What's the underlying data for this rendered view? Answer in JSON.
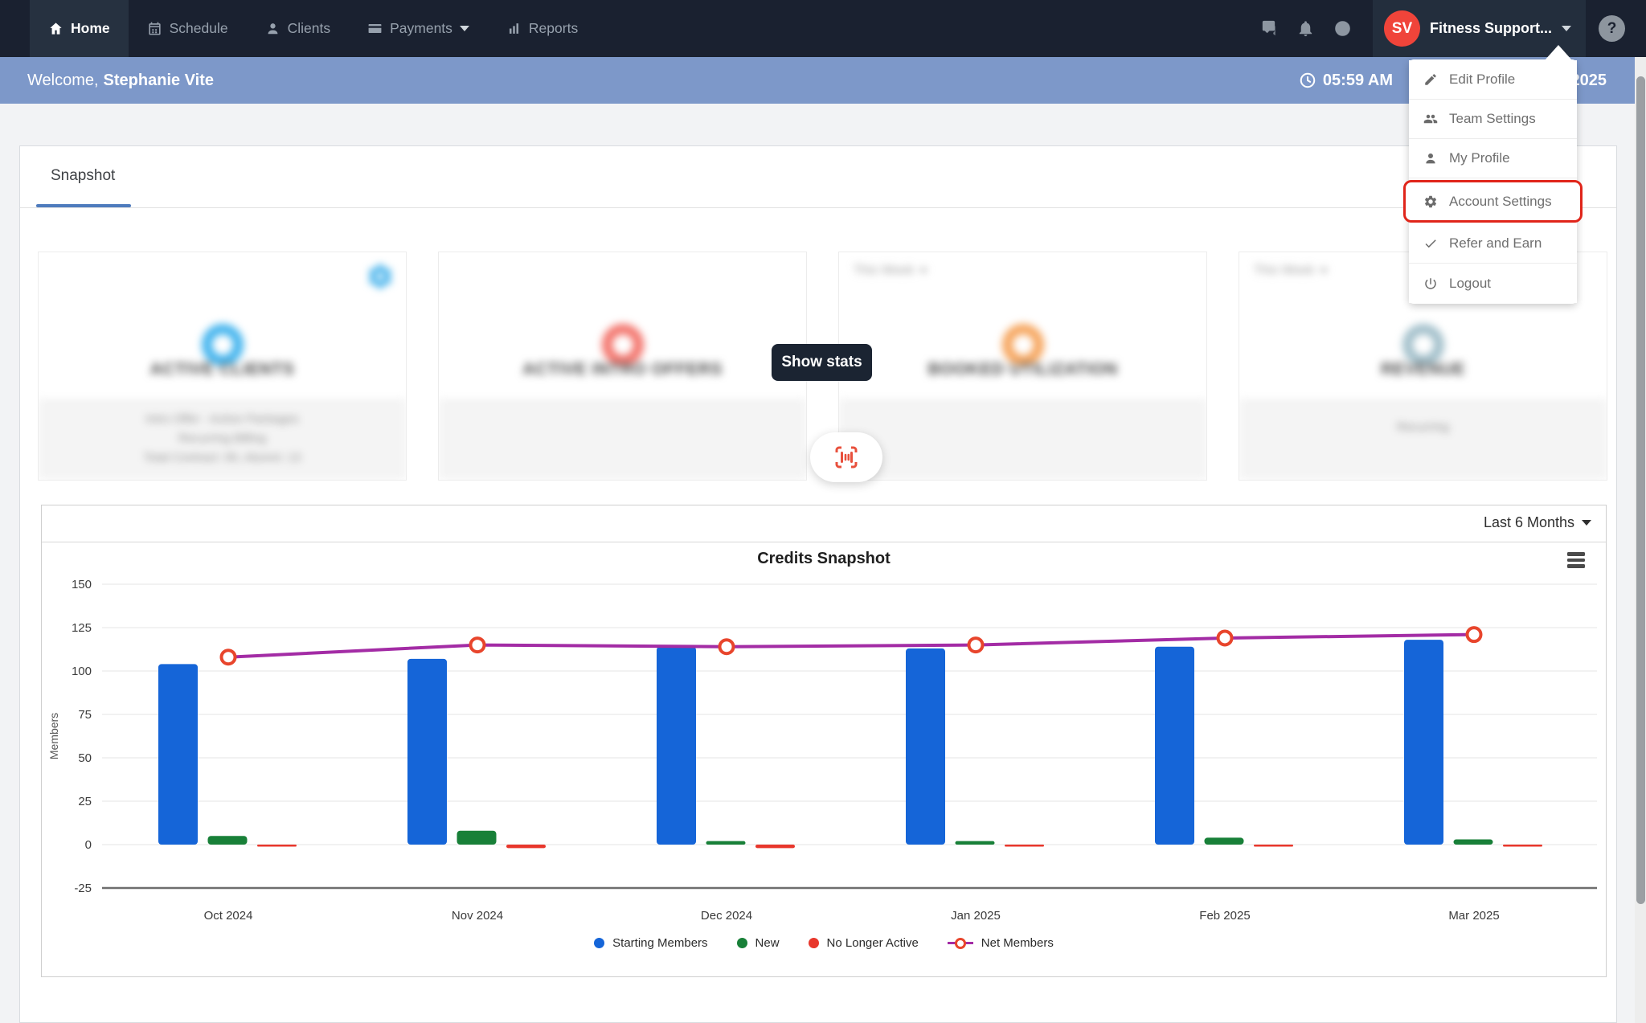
{
  "navbar": {
    "items": [
      {
        "label": "Home",
        "icon": "home-icon",
        "active": true
      },
      {
        "label": "Schedule",
        "icon": "calendar-icon",
        "active": false
      },
      {
        "label": "Clients",
        "icon": "clients-icon",
        "active": false
      },
      {
        "label": "Payments",
        "icon": "payments-icon",
        "active": false,
        "has_caret": true
      },
      {
        "label": "Reports",
        "icon": "reports-icon",
        "active": false
      }
    ],
    "user": {
      "initials": "SV",
      "name": "Fitness Support...",
      "avatar_color": "#f0443a"
    },
    "help_label": "?"
  },
  "welcome_bar": {
    "prefix": "Welcome,",
    "name": "Stephanie Vite",
    "time": "05:59 AM",
    "date_fragment": "2025",
    "bg": "#7d98c9"
  },
  "user_menu": {
    "highlight_color": "#e0251a",
    "items": [
      {
        "label": "Edit Profile",
        "icon": "pencil-icon",
        "highlighted": false
      },
      {
        "label": "Team Settings",
        "icon": "team-icon",
        "highlighted": false
      },
      {
        "label": "My Profile",
        "icon": "user-icon",
        "highlighted": false
      },
      {
        "label": "Account Settings",
        "icon": "gear-icon",
        "highlighted": true
      },
      {
        "label": "Refer and Earn",
        "icon": "check-icon",
        "highlighted": false
      },
      {
        "label": "Logout",
        "icon": "power-icon",
        "highlighted": false
      }
    ]
  },
  "tabs": {
    "active": "Snapshot"
  },
  "stat_cards": [
    {
      "title": "ACTIVE CLIENTS",
      "accent": "#45b5ee",
      "has_gear_badge": true,
      "footer_lines": [
        "Intro Offer - Active Packages",
        "Recurring Billing",
        "Total Contract: 90, Alumni: 13"
      ]
    },
    {
      "title": "ACTIVE INTRO OFFERS",
      "accent": "#f3756d",
      "footer_lines": []
    },
    {
      "title": "BOOKED UTILIZATION",
      "accent": "#f6a65f",
      "period": "This Week",
      "footer_lines": []
    },
    {
      "title": "REVENUE",
      "accent": "#a3c0cb",
      "period": "This Week",
      "footer_lines": [
        "Recurring"
      ]
    }
  ],
  "overlay": {
    "show_stats": "Show stats",
    "scan_icon": "barcode-scan-icon"
  },
  "chart_card": {
    "range_label": "Last 6 Months"
  },
  "chart_data": {
    "type": "bar",
    "title": "Credits Snapshot",
    "ylabel": "Members",
    "categories": [
      "Oct 2024",
      "Nov 2024",
      "Dec 2024",
      "Jan 2025",
      "Feb 2025",
      "Mar 2025"
    ],
    "series": [
      {
        "name": "Starting Members",
        "type": "bar",
        "color": "#1565d8",
        "values": [
          104,
          107,
          114,
          113,
          114,
          118
        ]
      },
      {
        "name": "New",
        "type": "bar",
        "color": "#188038",
        "values": [
          5,
          8,
          2,
          2,
          4,
          3
        ]
      },
      {
        "name": "No Longer Active",
        "type": "bar",
        "color": "#e8372c",
        "values": [
          -1,
          -2,
          -2,
          -1,
          -1,
          -1
        ]
      },
      {
        "name": "Net Members",
        "type": "line",
        "color": "#a32ca5",
        "marker_color": "#e8452c",
        "values": [
          108,
          115,
          114,
          115,
          119,
          121
        ]
      }
    ],
    "ylim": [
      -25,
      150
    ],
    "yticks": [
      150,
      125,
      100,
      75,
      50,
      25,
      0,
      -25
    ],
    "grid": true,
    "legend_position": "bottom"
  }
}
